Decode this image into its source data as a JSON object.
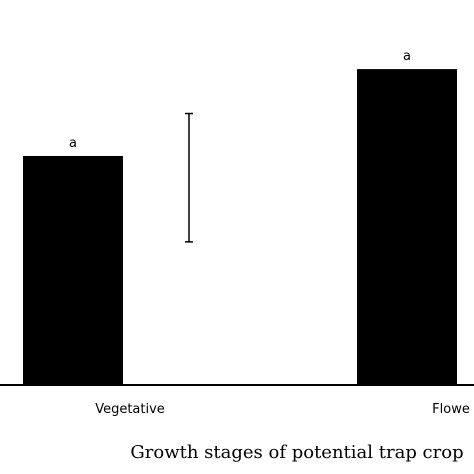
{
  "chart_data": {
    "type": "bar",
    "categories": [
      "Vegetative",
      "Flowe"
    ],
    "values": [
      232,
      320
    ],
    "significance_labels": [
      "a",
      "a"
    ],
    "error_bar": {
      "low": 145,
      "high": 275
    },
    "xlabel": "Growth stages of potential trap crop",
    "ylabel": "",
    "ylim": [
      0,
      390
    ],
    "bar_color": "#000000",
    "legend": "none",
    "grid": false
  }
}
